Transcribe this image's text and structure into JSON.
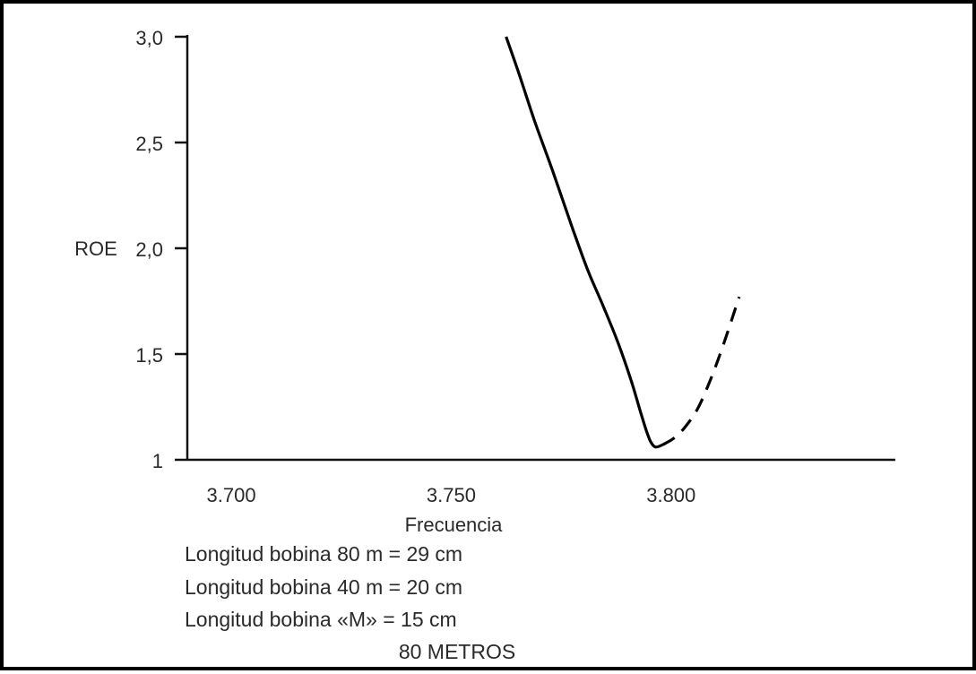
{
  "chart_data": {
    "type": "line",
    "xlabel": "Frecuencia",
    "ylabel": "ROE",
    "xlim": [
      3.69,
      3.851
    ],
    "ylim": [
      1.0,
      3.0
    ],
    "x_ticks": [
      3.7,
      3.75,
      3.8
    ],
    "x_tick_labels": [
      "3.700",
      "3.750",
      "3.800"
    ],
    "y_ticks": [
      1.0,
      1.5,
      2.0,
      2.5,
      3.0
    ],
    "y_tick_labels": [
      "1",
      "1,5",
      "2,0",
      "2,5",
      "3,0"
    ],
    "grid": false,
    "line_color": "#000000",
    "series": [
      {
        "style": "solid",
        "x": [
          3.7625,
          3.7655,
          3.769,
          3.773,
          3.7775,
          3.781,
          3.7845,
          3.788,
          3.791,
          3.793,
          3.7945,
          3.7955,
          3.7965,
          3.798
        ],
        "y": [
          3.0,
          2.82,
          2.6,
          2.37,
          2.1,
          1.9,
          1.73,
          1.55,
          1.37,
          1.23,
          1.13,
          1.08,
          1.06,
          1.07
        ]
      },
      {
        "style": "dashed",
        "x": [
          3.798,
          3.8005,
          3.803,
          3.806,
          3.809,
          3.812,
          3.8155
        ],
        "y": [
          1.07,
          1.1,
          1.15,
          1.24,
          1.38,
          1.55,
          1.77
        ]
      }
    ]
  },
  "notes": {
    "line1": "Longitud bobina 80 m = 29 cm",
    "line2": "Longitud bobina 40 m = 20 cm",
    "line3": "Longitud bobina «M» = 15 cm",
    "band": "80 METROS"
  }
}
